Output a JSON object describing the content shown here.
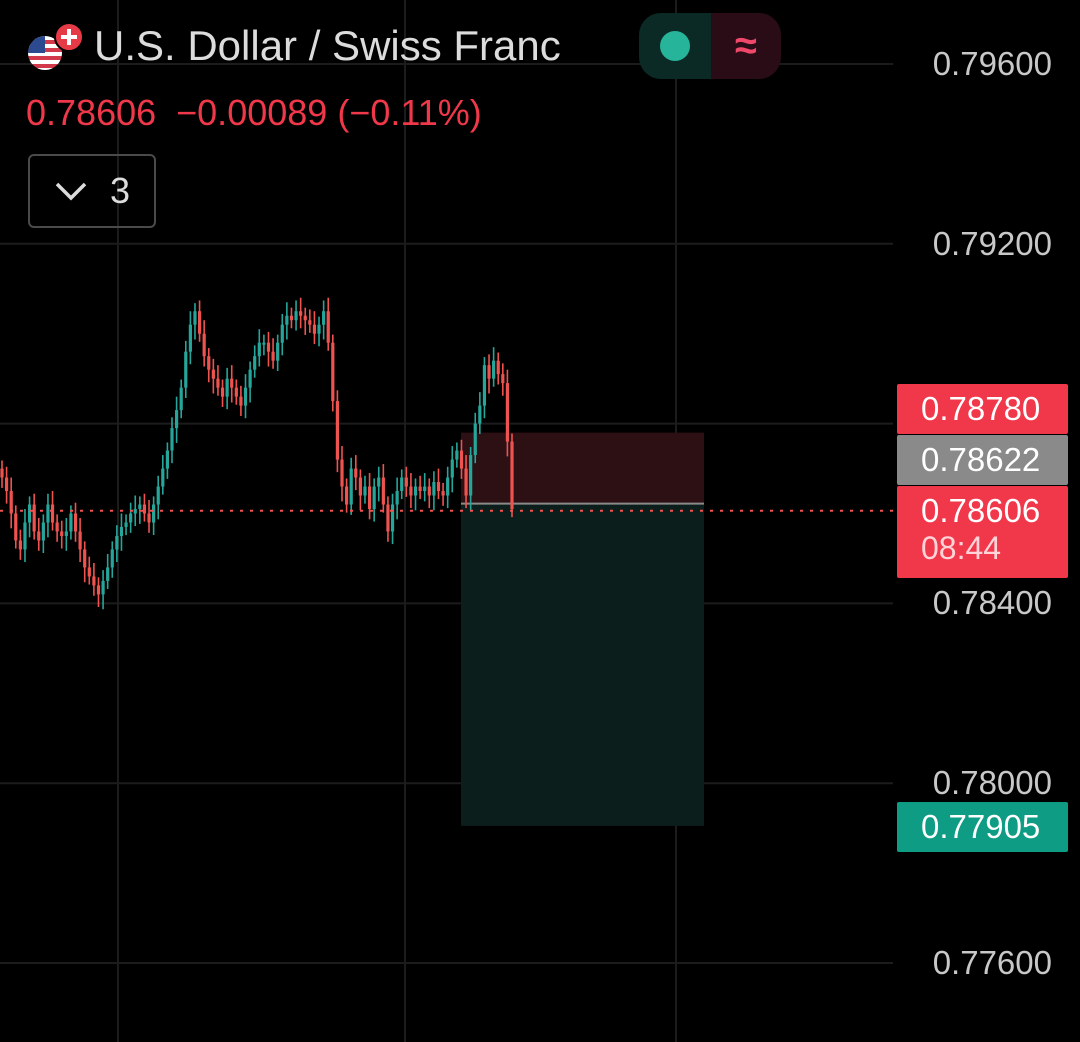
{
  "symbol": {
    "title": "U.S. Dollar / Swiss Franc",
    "flags": [
      "us-flag-icon",
      "ch-flag-icon"
    ],
    "market_status_icons": [
      "market-open-dot-icon",
      "approx-icon"
    ],
    "approx_glyph": "≈"
  },
  "quote": {
    "last": "0.78606",
    "change": "−0.00089",
    "change_pct": "(−0.11%)"
  },
  "indicators_toggle": {
    "count": "3",
    "icon": "chevron-down-icon"
  },
  "price_axis": {
    "labels": [
      "0.79600",
      "0.79200",
      "0.78400",
      "0.78000",
      "0.77600"
    ]
  },
  "price_tags": {
    "stop_loss": "0.78780",
    "entry": "0.78622",
    "current": "0.78606",
    "countdown": "08:44",
    "take_profit": "0.77905"
  },
  "colors": {
    "up": "#26a69a",
    "down": "#ef5350",
    "bg": "#000000",
    "grid": "#1c1c1c",
    "stop_zone": "#2d1014",
    "target_zone": "#0b1e1b"
  },
  "chart_data": {
    "type": "candlestick",
    "y_range": [
      0.774,
      0.798
    ],
    "gridlines": true,
    "position_tool": {
      "type": "short",
      "entry": 0.78622,
      "stop": 0.7878,
      "target": 0.77905
    },
    "current_price": 0.78606,
    "close_series": [
      0.7868,
      0.7865,
      0.786,
      0.7854,
      0.7852,
      0.7858,
      0.7862,
      0.7856,
      0.7854,
      0.7858,
      0.7862,
      0.7858,
      0.7856,
      0.7855,
      0.7856,
      0.786,
      0.7856,
      0.7852,
      0.7848,
      0.7846,
      0.7844,
      0.7842,
      0.7845,
      0.7848,
      0.7852,
      0.7855,
      0.7857,
      0.7858,
      0.786,
      0.7861,
      0.7862,
      0.786,
      0.7858,
      0.7862,
      0.7866,
      0.787,
      0.7874,
      0.7879,
      0.7883,
      0.7888,
      0.7896,
      0.7902,
      0.7905,
      0.79,
      0.7895,
      0.7892,
      0.789,
      0.7888,
      0.7886,
      0.789,
      0.7888,
      0.7886,
      0.7884,
      0.7888,
      0.7892,
      0.7895,
      0.7898,
      0.7898,
      0.7896,
      0.7894,
      0.7898,
      0.7902,
      0.7904,
      0.7903,
      0.7905,
      0.7904,
      0.7903,
      0.7902,
      0.79,
      0.7902,
      0.7905,
      0.7898,
      0.7885,
      0.7872,
      0.7866,
      0.7862,
      0.787,
      0.7868,
      0.7864,
      0.7866,
      0.7861,
      0.7866,
      0.7868,
      0.7862,
      0.7856,
      0.7862,
      0.7865,
      0.7868,
      0.7866,
      0.7864,
      0.7866,
      0.7865,
      0.7866,
      0.7864,
      0.7867,
      0.7865,
      0.7864,
      0.7868,
      0.7872,
      0.7874,
      0.787,
      0.7864,
      0.7873,
      0.788,
      0.7884,
      0.7893,
      0.789,
      0.7894,
      0.7891,
      0.7889,
      0.7876,
      0.7861
    ]
  }
}
